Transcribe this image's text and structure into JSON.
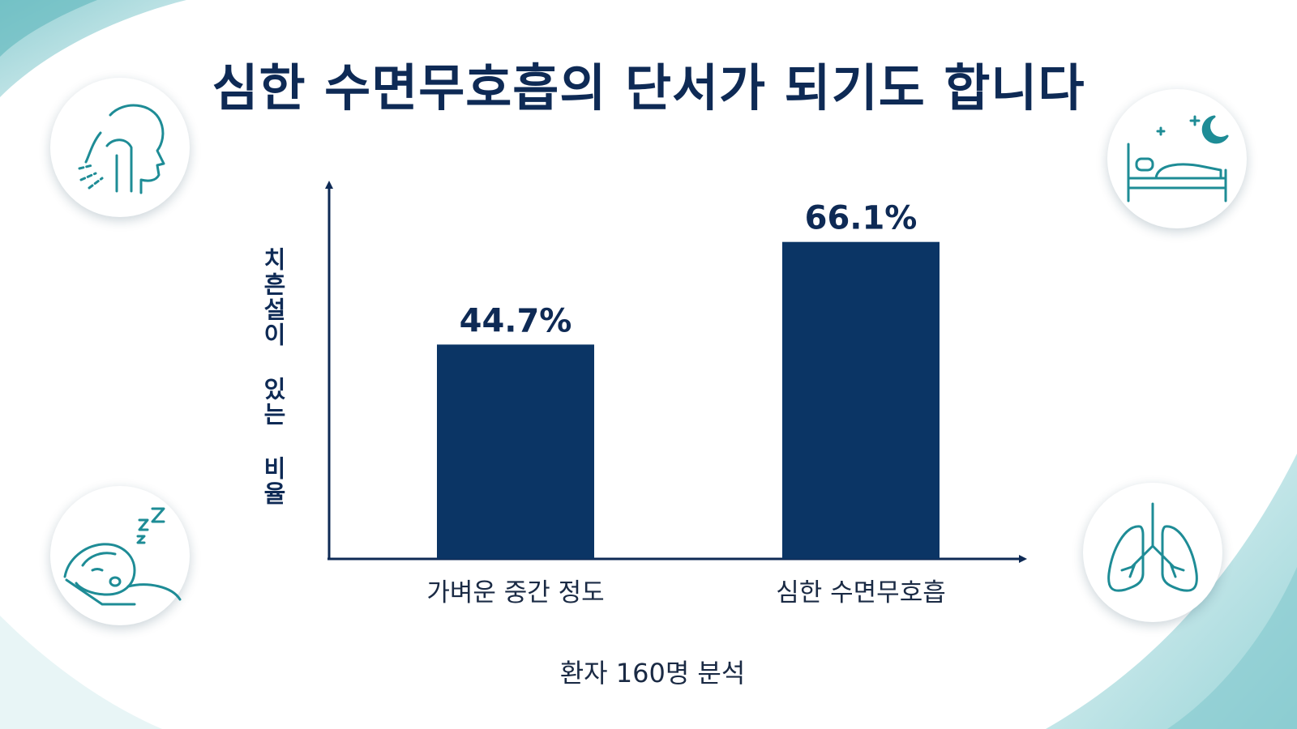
{
  "title": "심한 수면무호흡의 단서가 되기도 합니다",
  "chart_data": {
    "type": "bar",
    "categories": [
      "가벼운 중간 정도",
      "심한 수면무호흡"
    ],
    "values": [
      44.7,
      66.1
    ],
    "value_labels": [
      "44.7%",
      "66.1%"
    ],
    "ylabel": "치흔설이 있는 비율",
    "xlabel": "",
    "ylim": [
      0,
      100
    ],
    "grid": false,
    "bar_color": "#0b3565",
    "axis_color": "#0e2a55"
  },
  "footnote": "환자 160명 분석",
  "colors": {
    "title": "#0e2a55",
    "accent_teal": "#1e8c96",
    "background_wave": "#bfe3e6"
  },
  "icons": [
    {
      "name": "airway-profile-icon",
      "position": "top-left"
    },
    {
      "name": "bed-night-icon",
      "position": "top-right"
    },
    {
      "name": "snoring-sleeper-icon",
      "position": "bottom-left"
    },
    {
      "name": "lungs-icon",
      "position": "bottom-right"
    }
  ]
}
